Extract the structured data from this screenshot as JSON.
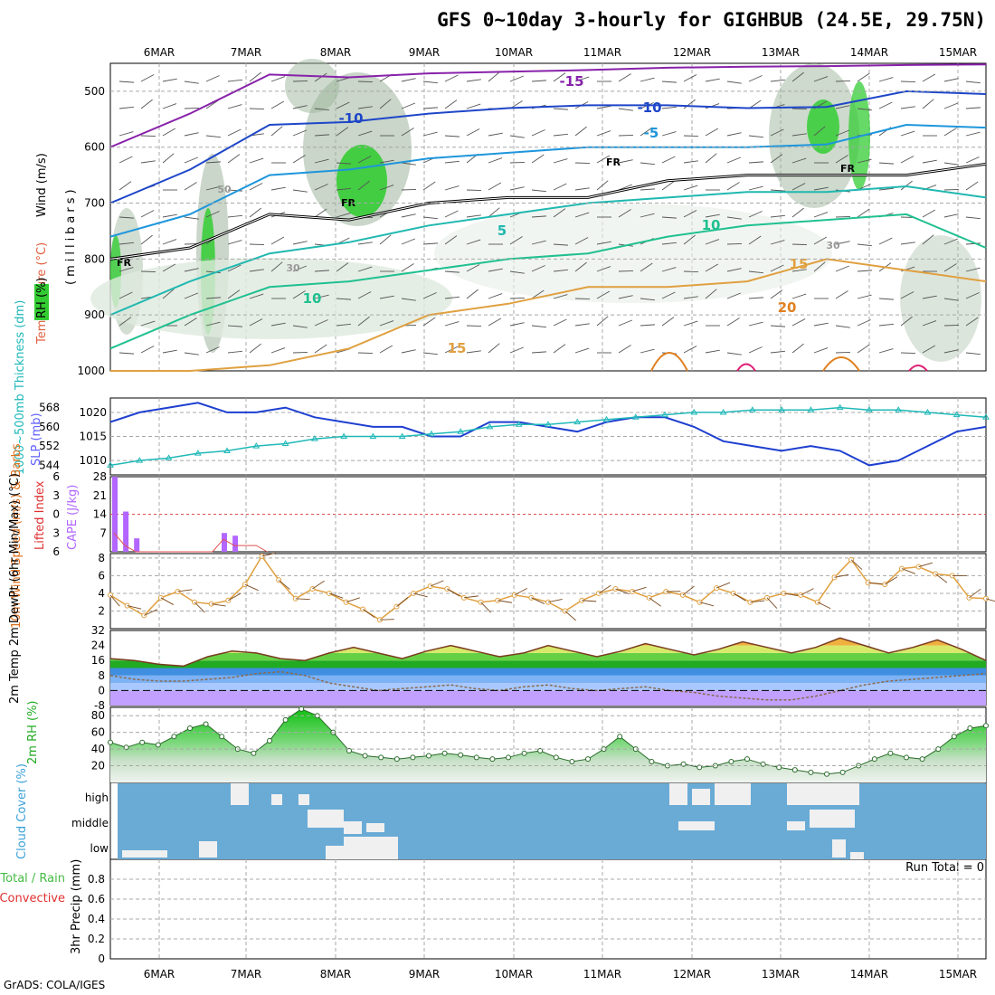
{
  "title": "GFS 0~10day 3-hourly for GIGHBUB (24.5E, 29.75N)",
  "credit": "GrADS: COLA/IGES",
  "run_total": "Run Total = 0",
  "colors": {
    "grid": "#a8a8a8",
    "rh_green": "#33cc33",
    "rh_dark": "#9cb59c",
    "slp_line": "#1e3fd0",
    "thickness_line": "#20b8b8",
    "cape_bar": "#b266ff",
    "lifted_index": "#e05050",
    "wind10m": "#e0a040",
    "rh2m": "#22cc22",
    "cloud_bg": "#6aabd6",
    "cloud_fill": "#f0f0f0",
    "fr_line": "#000000"
  },
  "chart_data": [
    {
      "name": "upper-air",
      "type": "area",
      "ylabel": "(millibars)",
      "ylabel_legends": [
        "Wind (m/s)",
        "Temperature (°C)",
        "RH (%)"
      ],
      "date_labels": [
        "6MAR",
        "7MAR",
        "8MAR",
        "9MAR",
        "10MAR",
        "11MAR",
        "12MAR",
        "13MAR",
        "14MAR",
        "15MAR"
      ],
      "y_ticks": [
        500,
        600,
        700,
        800,
        900,
        1000
      ],
      "ylim": [
        1000,
        450
      ],
      "isotherms": [
        {
          "label": "-15",
          "p": [
            600,
            540,
            470,
            475,
            468,
            465,
            462,
            458,
            456,
            455,
            453,
            452
          ]
        },
        {
          "label": "-10",
          "p": [
            700,
            640,
            560,
            555,
            540,
            530,
            525,
            525,
            530,
            528,
            500,
            505
          ]
        },
        {
          "label": "-5",
          "p": [
            760,
            720,
            650,
            640,
            620,
            610,
            600,
            600,
            600,
            595,
            560,
            565
          ]
        },
        {
          "label": "5",
          "p": [
            900,
            840,
            790,
            770,
            740,
            720,
            700,
            690,
            680,
            680,
            670,
            690
          ]
        },
        {
          "label": "10",
          "p": [
            960,
            900,
            850,
            840,
            820,
            800,
            790,
            760,
            740,
            730,
            720,
            780
          ]
        },
        {
          "label": "15",
          "p": [
            1000,
            1000,
            990,
            960,
            900,
            880,
            850,
            850,
            840,
            800,
            820,
            840
          ]
        }
      ],
      "freezing_level": [
        800,
        780,
        720,
        730,
        700,
        690,
        690,
        660,
        650,
        650,
        650,
        630
      ],
      "contour_labels": [
        "-15",
        "-10",
        "-5",
        "FR",
        "5",
        "10",
        "15",
        "20",
        "10",
        "30",
        "50"
      ]
    },
    {
      "name": "slp-thickness",
      "type": "line",
      "ylabel_left": "1000~500mb Thickness (dm)",
      "ylabel_right": "SLP (mb)",
      "y_ticks_thickness": [
        544,
        552,
        560,
        568
      ],
      "y_ticks_slp": [
        1010,
        1015,
        1020
      ],
      "slp_range": [
        1007,
        1023
      ],
      "series": [
        {
          "name": "SLP (mb)",
          "values": [
            1018,
            1020,
            1021,
            1022,
            1020,
            1020,
            1021,
            1019,
            1018,
            1017,
            1017,
            1015,
            1015,
            1018,
            1018,
            1017,
            1016,
            1018,
            1019,
            1019,
            1017,
            1014,
            1013,
            1012,
            1013,
            1012,
            1009,
            1010,
            1013,
            1016,
            1017
          ]
        },
        {
          "name": "1000~500mb Thickness (dm)",
          "values": [
            544,
            546,
            547,
            549,
            550,
            552,
            553,
            555,
            556,
            556,
            556,
            557,
            558,
            560,
            561,
            561,
            562,
            563,
            564,
            565,
            566,
            566,
            567,
            567,
            567,
            568,
            567,
            567,
            566,
            565,
            564
          ]
        }
      ]
    },
    {
      "name": "cape-li",
      "type": "bar",
      "ylabel_left": "Lifted Index",
      "ylabel_right": "CAPE (J/kg)",
      "y_ticks_li": [
        -6,
        -3,
        0,
        3,
        6
      ],
      "y_ticks_cape": [
        7,
        14,
        21,
        28
      ],
      "cape_values": [
        28,
        15,
        5,
        0,
        0,
        0,
        0,
        0,
        0,
        0,
        7,
        6,
        0,
        0,
        0
      ],
      "lifted_index": [
        3,
        5,
        6,
        6,
        6,
        6,
        6,
        6,
        6,
        6,
        4,
        5,
        5,
        5,
        6
      ]
    },
    {
      "name": "wind-10m",
      "type": "line",
      "ylabel": "10m Wind Speed (m/s) & Barbs",
      "y_ticks": [
        2,
        4,
        6,
        8
      ],
      "ylim": [
        0,
        8
      ],
      "values": [
        3.8,
        2.6,
        1.5,
        3.5,
        4.2,
        3.0,
        2.8,
        3.2,
        5.0,
        8.2,
        5.5,
        3.4,
        4.5,
        4.0,
        3.0,
        2.2,
        1.0,
        2.5,
        4.0,
        4.8,
        4.5,
        3.5,
        3.0,
        3.2,
        3.8,
        3.5,
        3.0,
        2.0,
        3.2,
        4.0,
        4.5,
        4.2,
        3.5,
        4.2,
        3.8,
        3.0,
        4.6,
        4.0,
        3.0,
        3.5,
        4.0,
        3.8,
        3.0,
        5.8,
        7.8,
        5.2,
        5.0,
        6.8,
        7.0,
        6.2,
        6.0,
        3.5,
        3.4
      ]
    },
    {
      "name": "temp-2m",
      "type": "area",
      "ylabel": "2m Temp 2m DewPt (6hr Min/Max) (°C)",
      "y_ticks": [
        -8,
        0,
        8,
        16,
        24,
        32
      ],
      "ylim": [
        -8,
        32
      ],
      "temp": [
        17,
        16,
        14,
        13,
        18,
        21,
        20,
        17,
        16,
        20,
        23,
        20,
        17,
        21,
        24,
        21,
        18,
        20,
        24,
        21,
        18,
        21,
        25,
        22,
        19,
        22,
        26,
        23,
        20,
        23,
        28,
        24,
        20,
        23,
        27,
        22,
        16
      ],
      "dewpt": [
        8,
        6,
        5,
        5,
        6,
        7,
        9,
        10,
        8,
        4,
        2,
        0,
        1,
        2,
        3,
        1,
        0,
        2,
        3,
        1,
        0,
        1,
        2,
        0,
        -1,
        -3,
        -4,
        -5,
        -5,
        -3,
        0,
        3,
        5,
        6,
        7,
        8,
        9
      ]
    },
    {
      "name": "rh-2m",
      "type": "area",
      "ylabel": "2m RH (%)",
      "y_ticks": [
        20,
        40,
        60,
        80
      ],
      "ylim": [
        0,
        90
      ],
      "values": [
        48,
        42,
        48,
        45,
        55,
        65,
        70,
        55,
        40,
        35,
        50,
        75,
        88,
        80,
        60,
        38,
        32,
        30,
        28,
        30,
        32,
        35,
        33,
        30,
        28,
        30,
        35,
        38,
        30,
        25,
        28,
        40,
        55,
        40,
        25,
        20,
        22,
        18,
        20,
        25,
        28,
        22,
        18,
        15,
        12,
        10,
        12,
        20,
        28,
        35,
        30,
        28,
        40,
        55,
        65,
        68
      ]
    },
    {
      "name": "cloud-cover",
      "type": "heatmap",
      "ylabel": "Cloud Cover (%)",
      "rows": [
        "high",
        "middle",
        "low"
      ]
    },
    {
      "name": "precip",
      "type": "bar",
      "ylabel": "3hr Precip (mm)",
      "legend": [
        "Total / Rain",
        "Convective"
      ],
      "y_ticks": [
        0,
        0.2,
        0.4,
        0.6,
        0.8
      ],
      "ylim": [
        0,
        1
      ],
      "values": []
    }
  ]
}
